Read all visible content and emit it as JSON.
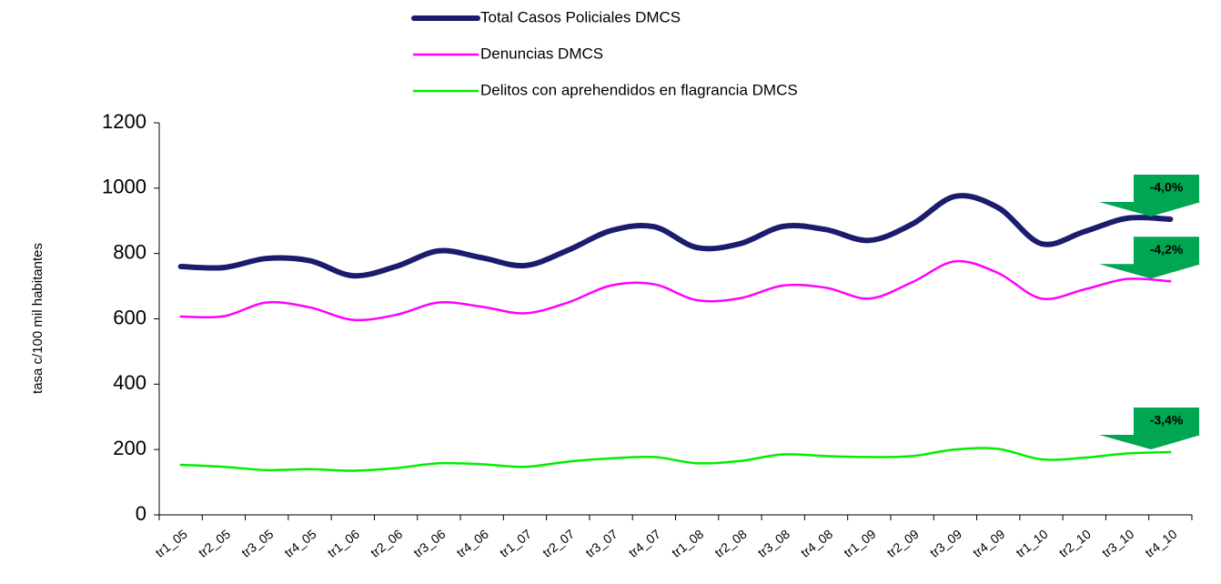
{
  "chart_data": {
    "type": "line",
    "y_label": "tasa c/100 mil habitantes",
    "categories": [
      "tr1_05",
      "tr2_05",
      "tr3_05",
      "tr4_05",
      "tr1_06",
      "tr2_06",
      "tr3_06",
      "tr4_06",
      "tr1_07",
      "tr2_07",
      "tr3_07",
      "tr4_07",
      "tr1_08",
      "tr2_08",
      "tr3_08",
      "tr4_08",
      "tr1_09",
      "tr2_09",
      "tr3_09",
      "tr4_09",
      "tr1_10",
      "tr2_10",
      "tr3_10",
      "tr4_10"
    ],
    "series": [
      {
        "name": "Total Casos Policiales DMCS",
        "color": "#1c1c6e",
        "values": [
          760,
          757,
          785,
          778,
          732,
          760,
          808,
          787,
          763,
          810,
          870,
          882,
          818,
          830,
          883,
          873,
          840,
          890,
          975,
          940,
          830,
          867,
          908,
          905
        ]
      },
      {
        "name": "Denuncias DMCS",
        "color": "#ff00ff",
        "values": [
          607,
          608,
          650,
          635,
          597,
          612,
          650,
          637,
          617,
          650,
          702,
          706,
          657,
          663,
          702,
          695,
          662,
          712,
          776,
          740,
          662,
          690,
          722,
          715
        ]
      },
      {
        "name": "Delitos con aprehendidos en flagrancia DMCS",
        "color": "#00ee00",
        "values": [
          153,
          147,
          137,
          140,
          135,
          143,
          158,
          155,
          147,
          163,
          173,
          177,
          158,
          165,
          185,
          180,
          177,
          180,
          200,
          202,
          170,
          175,
          188,
          192
        ]
      }
    ],
    "annotations": [
      "-4,0%",
      "-4,2%",
      "-3,4%"
    ],
    "annotation_color": "#00a651",
    "ylim": [
      0,
      1200
    ],
    "yticks": [
      0,
      200,
      400,
      600,
      800,
      1000,
      1200
    ]
  }
}
